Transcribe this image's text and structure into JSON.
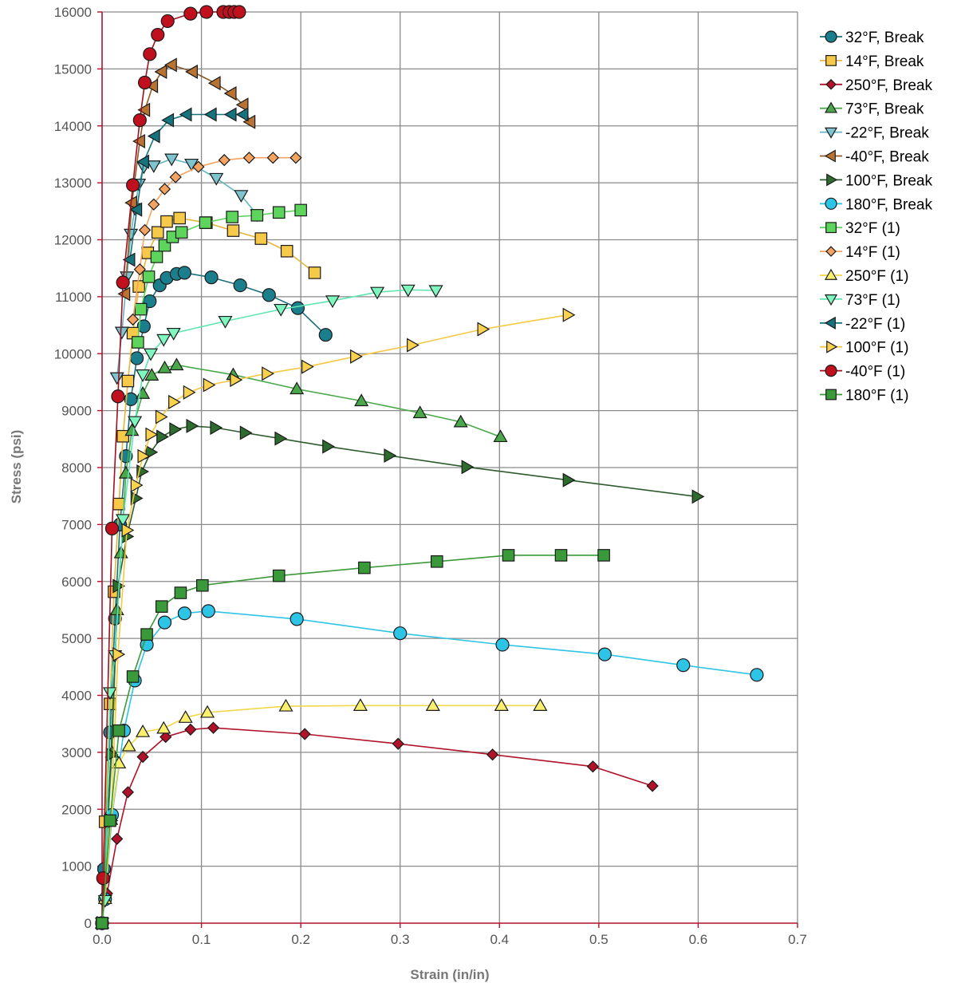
{
  "chart_data": {
    "type": "line",
    "title": "",
    "xlabel": "Strain (in/in)",
    "ylabel": "Stress (psi)",
    "xlim": [
      0,
      0.7
    ],
    "ylim": [
      0,
      16000
    ],
    "xticks": [
      0,
      0.1,
      0.2,
      0.3,
      0.4,
      0.5,
      0.6,
      0.7
    ],
    "yticks": [
      0,
      1000,
      2000,
      3000,
      4000,
      5000,
      6000,
      7000,
      8000,
      9000,
      10000,
      11000,
      12000,
      13000,
      14000,
      15000,
      16000
    ],
    "xtick_labels": [
      "0.0",
      "0.1",
      "0.2",
      "0.3",
      "0.4",
      "0.5",
      "0.6",
      "0.7"
    ],
    "ytick_labels": [
      "0",
      "1000",
      "2000",
      "3000",
      "4000",
      "5000",
      "6000",
      "7000",
      "8000",
      "9000",
      "10000",
      "11000",
      "12000",
      "13000",
      "14000",
      "15000",
      "16000"
    ],
    "grid": true,
    "legend_position": "right",
    "series": [
      {
        "name": "32°F, Break",
        "marker": "circle",
        "fill": "#1a7e8c",
        "line": "#1a6f7c",
        "x": [
          0,
          0.002,
          0.008,
          0.013,
          0.018,
          0.024,
          0.029,
          0.035,
          0.042,
          0.048,
          0.058,
          0.065,
          0.075,
          0.083,
          0.11,
          0.139,
          0.168,
          0.197,
          0.225
        ],
        "y": [
          0,
          950,
          3350,
          5350,
          7000,
          8200,
          9200,
          9920,
          10480,
          10920,
          11200,
          11330,
          11400,
          11420,
          11340,
          11200,
          11030,
          10800,
          10330
        ]
      },
      {
        "name": "14°F, Break",
        "marker": "square",
        "fill": "#f7c948",
        "line": "#e6b53a",
        "x": [
          0,
          0.003,
          0.008,
          0.012,
          0.017,
          0.021,
          0.026,
          0.031,
          0.037,
          0.046,
          0.056,
          0.065,
          0.078,
          0.105,
          0.132,
          0.16,
          0.186,
          0.214
        ],
        "y": [
          0,
          1780,
          3850,
          5820,
          7360,
          8550,
          9520,
          10360,
          11180,
          11770,
          12130,
          12320,
          12380,
          12300,
          12160,
          12020,
          11800,
          11420
        ]
      },
      {
        "name": "250°F, Break",
        "marker": "diamond",
        "fill": "#b0122a",
        "line": "#b0122a",
        "x": [
          0,
          0.002,
          0.005,
          0.015,
          0.026,
          0.041,
          0.064,
          0.089,
          0.112,
          0.204,
          0.298,
          0.393,
          0.494,
          0.554
        ],
        "y": [
          0,
          760,
          520,
          1480,
          2300,
          2920,
          3270,
          3400,
          3430,
          3320,
          3150,
          2960,
          2750,
          2410
        ]
      },
      {
        "name": "73°F, Break",
        "marker": "triangle",
        "fill": "#4aa84a",
        "line": "#4aa84a",
        "x": [
          0,
          0.01,
          0.015,
          0.019,
          0.024,
          0.03,
          0.041,
          0.05,
          0.063,
          0.075,
          0.132,
          0.196,
          0.261,
          0.32,
          0.361,
          0.401
        ],
        "y": [
          0,
          3000,
          5500,
          6500,
          7900,
          8650,
          9300,
          9620,
          9750,
          9800,
          9630,
          9380,
          9170,
          8960,
          8800,
          8540
        ]
      },
      {
        "name": "-22°F, Break",
        "marker": "triangle-down",
        "fill": "#7ec4cf",
        "line": "#5fb6c2",
        "x": [
          0.015,
          0.02,
          0.025,
          0.029,
          0.033,
          0.037,
          0.042,
          0.052,
          0.07,
          0.09,
          0.115,
          0.14,
          0.156
        ],
        "y": [
          9580,
          10380,
          11350,
          12100,
          12550,
          12980,
          13280,
          13300,
          13420,
          13330,
          13080,
          12780,
          12440
        ]
      },
      {
        "name": "-40°F, Break",
        "marker": "triangle-left",
        "fill": "#b87333",
        "line": "#8b5a2b",
        "x": [
          0.023,
          0.03,
          0.038,
          0.043,
          0.051,
          0.06,
          0.07,
          0.091,
          0.114,
          0.13,
          0.142,
          0.149
        ],
        "y": [
          11050,
          12650,
          13730,
          14280,
          14700,
          14950,
          15070,
          14950,
          14750,
          14570,
          14370,
          14070
        ]
      },
      {
        "name": "100°F, Break",
        "marker": "triangle-right",
        "fill": "#2e6b2e",
        "line": "#2e5a2e",
        "x": [
          0,
          0.009,
          0.016,
          0.025,
          0.034,
          0.04,
          0.049,
          0.06,
          0.073,
          0.09,
          0.114,
          0.144,
          0.179,
          0.227,
          0.289,
          0.367,
          0.469,
          0.599
        ],
        "y": [
          0,
          2960,
          5920,
          6790,
          7460,
          7930,
          8270,
          8540,
          8670,
          8730,
          8700,
          8610,
          8510,
          8370,
          8210,
          8010,
          7780,
          7490
        ]
      },
      {
        "name": "180°F, Break",
        "marker": "circle",
        "fill": "#2ec4e6",
        "line": "#2ec4e6",
        "x": [
          0,
          0.003,
          0.01,
          0.022,
          0.033,
          0.045,
          0.063,
          0.083,
          0.107,
          0.196,
          0.3,
          0.403,
          0.506,
          0.585,
          0.659
        ],
        "y": [
          0,
          420,
          1900,
          3380,
          4260,
          4890,
          5280,
          5440,
          5480,
          5340,
          5090,
          4890,
          4720,
          4530,
          4360
        ]
      },
      {
        "name": "32°F (1)",
        "marker": "square",
        "fill": "#5dd55d",
        "line": "#5dd55d",
        "x": [
          0.036,
          0.039,
          0.047,
          0.055,
          0.063,
          0.071,
          0.08,
          0.104,
          0.131,
          0.156,
          0.178,
          0.2
        ],
        "y": [
          10200,
          10780,
          11350,
          11700,
          11900,
          12050,
          12130,
          12300,
          12400,
          12430,
          12480,
          12520
        ]
      },
      {
        "name": "14°F (1)",
        "marker": "diamond",
        "fill": "#f4a460",
        "line": "#f4a460",
        "x": [
          0.031,
          0.038,
          0.043,
          0.052,
          0.063,
          0.074,
          0.097,
          0.123,
          0.148,
          0.172,
          0.195
        ],
        "y": [
          10600,
          11480,
          12170,
          12620,
          12890,
          13100,
          13280,
          13400,
          13440,
          13440,
          13440
        ]
      },
      {
        "name": "250°F (1)",
        "marker": "triangle",
        "fill": "#faf06e",
        "line": "#f0d84a",
        "x": [
          0,
          0.003,
          0.009,
          0.017,
          0.027,
          0.041,
          0.062,
          0.084,
          0.106,
          0.185,
          0.26,
          0.333,
          0.402,
          0.441
        ],
        "y": [
          0,
          430,
          1820,
          2810,
          3110,
          3360,
          3420,
          3610,
          3700,
          3810,
          3820,
          3820,
          3820,
          3820
        ]
      },
      {
        "name": "73°F (1)",
        "marker": "triangle-down",
        "fill": "#7ff5bf",
        "line": "#5ee6b0",
        "x": [
          0,
          0.003,
          0.008,
          0.013,
          0.021,
          0.033,
          0.041,
          0.049,
          0.062,
          0.072,
          0.124,
          0.18,
          0.232,
          0.277,
          0.308,
          0.336
        ],
        "y": [
          0,
          400,
          4050,
          4700,
          7090,
          8810,
          9630,
          10000,
          10250,
          10360,
          10570,
          10780,
          10930,
          11080,
          11120,
          11110
        ]
      },
      {
        "name": "-22°F (1)",
        "marker": "triangle-left",
        "fill": "#15737e",
        "line": "#15737e",
        "x": [
          0.028,
          0.035,
          0.042,
          0.053,
          0.067,
          0.085,
          0.11,
          0.13,
          0.142
        ],
        "y": [
          11650,
          12530,
          13370,
          13820,
          14100,
          14200,
          14200,
          14200,
          14200
        ]
      },
      {
        "name": "100°F (1)",
        "marker": "triangle-right",
        "fill": "#fad24e",
        "line": "#f5c842",
        "x": [
          0,
          0.009,
          0.016,
          0.025,
          0.034,
          0.041,
          0.049,
          0.059,
          0.072,
          0.087,
          0.107,
          0.134,
          0.166,
          0.206,
          0.255,
          0.312,
          0.383,
          0.469
        ],
        "y": [
          0,
          1800,
          4720,
          6900,
          7690,
          8200,
          8580,
          8890,
          9150,
          9320,
          9450,
          9540,
          9650,
          9770,
          9950,
          10150,
          10430,
          10680
        ]
      },
      {
        "name": "-40°F (1)",
        "marker": "circle",
        "fill": "#c0101e",
        "line": "#a00f1e",
        "x": [
          0,
          0.001,
          0.01,
          0.016,
          0.021,
          0.031,
          0.038,
          0.043,
          0.048,
          0.056,
          0.066,
          0.089,
          0.105,
          0.122,
          0.128,
          0.133,
          0.138
        ],
        "y": [
          0,
          790,
          6930,
          9250,
          11250,
          12960,
          14100,
          14760,
          15260,
          15600,
          15840,
          15970,
          16000,
          16000,
          16000,
          16000,
          16000
        ]
      },
      {
        "name": "180°F (1)",
        "marker": "square",
        "fill": "#3a9a3a",
        "line": "#3a9a3a",
        "x": [
          0,
          0.008,
          0.017,
          0.031,
          0.045,
          0.06,
          0.079,
          0.101,
          0.178,
          0.264,
          0.337,
          0.409,
          0.462,
          0.505
        ],
        "y": [
          0,
          1800,
          3380,
          4330,
          5070,
          5560,
          5800,
          5930,
          6100,
          6240,
          6350,
          6460,
          6460,
          6460
        ]
      }
    ]
  }
}
